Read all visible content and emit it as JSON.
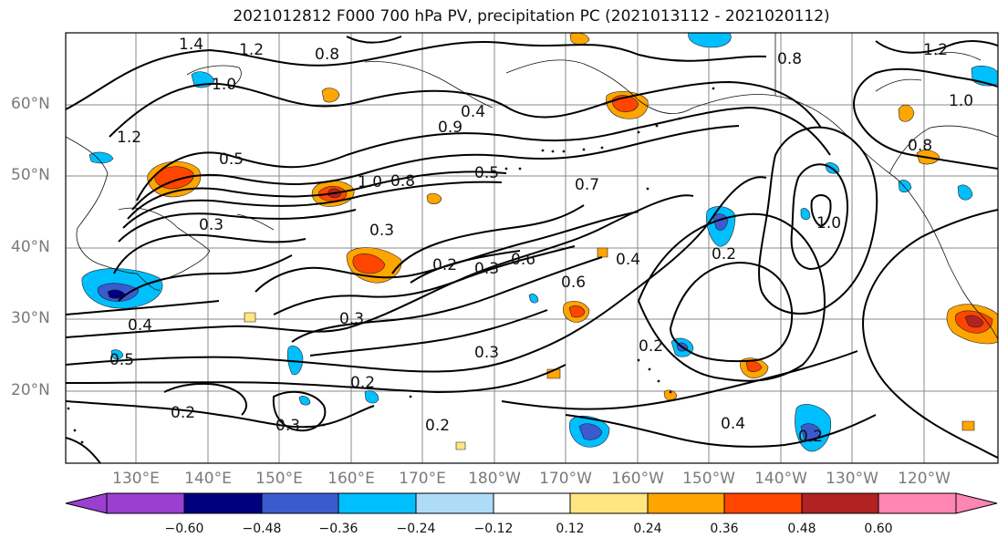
{
  "title": "2021012812 F000 700 hPa PV, precipitation PC (2021013112 - 2021020112)",
  "latitude_labels": [
    "60°N",
    "50°N",
    "40°N",
    "30°N",
    "20°N"
  ],
  "longitude_labels": [
    "130°E",
    "140°E",
    "150°E",
    "160°E",
    "170°E",
    "180°W",
    "170°W",
    "160°W",
    "150°W",
    "140°W",
    "130°W",
    "120°W"
  ],
  "contour_labels": [
    "1.4",
    "1.2",
    "0.8",
    "1.0",
    "1.2",
    "0.5",
    "0.9",
    "0.4",
    "1.0",
    "0.8",
    "0.5",
    "0.7",
    "0.3",
    "0.3",
    "0.2",
    "0.6",
    "0.4",
    "0.3",
    "0.2",
    "0.6",
    "0.3",
    "0.2",
    "0.4",
    "0.3",
    "0.2",
    "0.3",
    "0.2",
    "0.2",
    "0.4",
    "0.2",
    "0.5",
    "1.0",
    "0.8",
    "1.2",
    "1.0",
    "0.8"
  ],
  "colorbar": {
    "ticks": [
      "−0.60",
      "−0.48",
      "−0.36",
      "−0.24",
      "−0.12",
      "0.12",
      "0.24",
      "0.36",
      "0.48",
      "0.60"
    ],
    "colors": [
      "#9a3fd0",
      "#00007f",
      "#3a5bd0",
      "#00bfff",
      "#aedcf7",
      "#ffffff",
      "#ffe680",
      "#ffa500",
      "#ff4500",
      "#b22222",
      "#ff85b3"
    ]
  }
}
